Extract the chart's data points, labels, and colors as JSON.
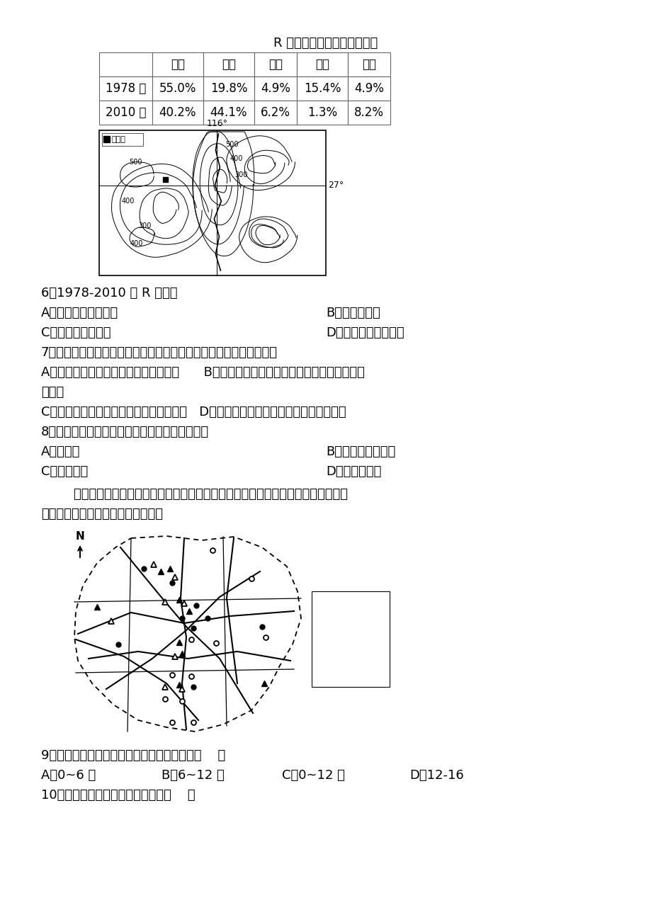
{
  "title": "R 河流域土地利用结构变化表",
  "table_headers": [
    "",
    "耕地",
    "林地",
    "草地",
    "荒地",
    "其他"
  ],
  "table_row1": [
    "1978 年",
    "55.0%",
    "19.8%",
    "4.9%",
    "15.4%",
    "4.9%"
  ],
  "table_row2": [
    "2010 年",
    "40.2%",
    "44.1%",
    "6.2%",
    "1.3%",
    "8.2%"
  ],
  "q6_stem": "6．1978-2010 年 R 河流域",
  "q6_a": "A．径流季节变化增大",
  "q6_b": "B．土壤层变薄",
  "q6_c": "C．生物多样性增加",
  "q6_d": "D．下游泥沙沉积增多",
  "q7_stem": "7．黄铜矿的开发利用可能产生的环境问题及应对措施，叙述正确的是",
  "q7_a": "A．露天开采引发地面沉降；填埋、复垦      B．矿产冶炼导致土壤酸性大幅度增强；使用石",
  "q7_a2": "灰中和",
  "q7_c": "C．矿产开采造成水资源枯竭；跨流域调水   D．矿产冶炼导致大气污染加剧；建硫酸厂",
  "q8_stem": "8．图示区域自然土壤有机质含量低的主要原因是",
  "q8_a": "A．温度高",
  "q8_b": "B．成土母质含氮低",
  "q8_c": "C．植被稀疏",
  "q8_d": "D．地势起伏大",
  "intro_line1": "        波鸿市位于德国鲁尔区，市区内地势平坦，下图示意波鸿市儿童游戏场地按不同年",
  "intro_line2": "龄段分级分布。据此完成下面小题。",
  "q9_stem": "9．波鸿市儿童游戏场地中服务范围最小的是（    ）",
  "q9_a": "A．0~6 岁",
  "q9_b": "B．6~12 岁",
  "q9_c": "C．0~12 岁",
  "q9_d": "D．12-16",
  "q10_stem": "10．推测住宅区主要分布在该市的（    ）",
  "bg_color": "#ffffff",
  "text_color": "#000000"
}
